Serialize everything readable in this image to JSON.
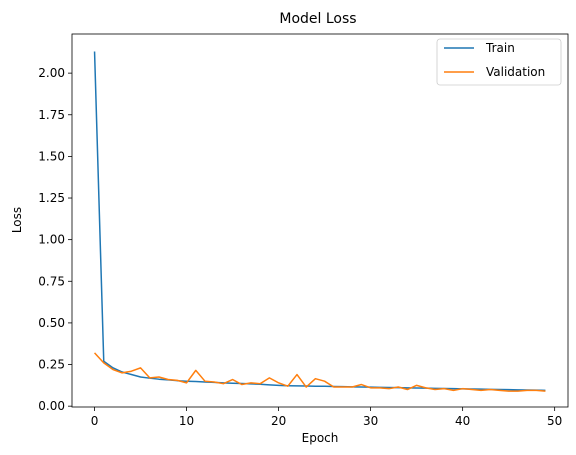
{
  "chart_data": {
    "type": "line",
    "title": "Model Loss",
    "xlabel": "Epoch",
    "ylabel": "Loss",
    "xlim": [
      -2.45,
      51.45
    ],
    "ylim": [
      -0.005,
      2.235
    ],
    "xticks": [
      0,
      10,
      20,
      30,
      40,
      50
    ],
    "xtick_labels": [
      "0",
      "10",
      "20",
      "30",
      "40",
      "50"
    ],
    "yticks": [
      0.0,
      0.25,
      0.5,
      0.75,
      1.0,
      1.25,
      1.5,
      1.75,
      2.0
    ],
    "ytick_labels": [
      "0.00",
      "0.25",
      "0.50",
      "0.75",
      "1.00",
      "1.25",
      "1.50",
      "1.75",
      "2.00"
    ],
    "grid": false,
    "legend_position": "top-right",
    "x": [
      0,
      1,
      2,
      3,
      4,
      5,
      6,
      7,
      8,
      9,
      10,
      11,
      12,
      13,
      14,
      15,
      16,
      17,
      18,
      19,
      20,
      21,
      22,
      23,
      24,
      25,
      26,
      27,
      28,
      29,
      30,
      31,
      32,
      33,
      34,
      35,
      36,
      37,
      38,
      39,
      40,
      41,
      42,
      43,
      44,
      45,
      46,
      47,
      48,
      49
    ],
    "series": [
      {
        "name": "Train",
        "color": "#1f77b4",
        "values": [
          2.13,
          0.27,
          0.23,
          0.205,
          0.19,
          0.175,
          0.168,
          0.162,
          0.158,
          0.153,
          0.15,
          0.148,
          0.145,
          0.143,
          0.14,
          0.138,
          0.136,
          0.134,
          0.132,
          0.128,
          0.125,
          0.123,
          0.122,
          0.121,
          0.12,
          0.12,
          0.118,
          0.117,
          0.116,
          0.115,
          0.114,
          0.113,
          0.112,
          0.111,
          0.11,
          0.109,
          0.108,
          0.107,
          0.106,
          0.105,
          0.104,
          0.103,
          0.102,
          0.101,
          0.1,
          0.099,
          0.098,
          0.097,
          0.096,
          0.095
        ]
      },
      {
        "name": "Validation",
        "color": "#ff7f0e",
        "values": [
          0.32,
          0.26,
          0.22,
          0.2,
          0.21,
          0.23,
          0.17,
          0.175,
          0.16,
          0.155,
          0.14,
          0.215,
          0.15,
          0.145,
          0.135,
          0.16,
          0.13,
          0.14,
          0.135,
          0.17,
          0.14,
          0.12,
          0.19,
          0.115,
          0.165,
          0.15,
          0.115,
          0.115,
          0.115,
          0.13,
          0.11,
          0.11,
          0.105,
          0.115,
          0.1,
          0.125,
          0.11,
          0.1,
          0.105,
          0.095,
          0.105,
          0.1,
          0.095,
          0.1,
          0.095,
          0.09,
          0.09,
          0.095,
          0.095,
          0.09
        ]
      }
    ]
  }
}
